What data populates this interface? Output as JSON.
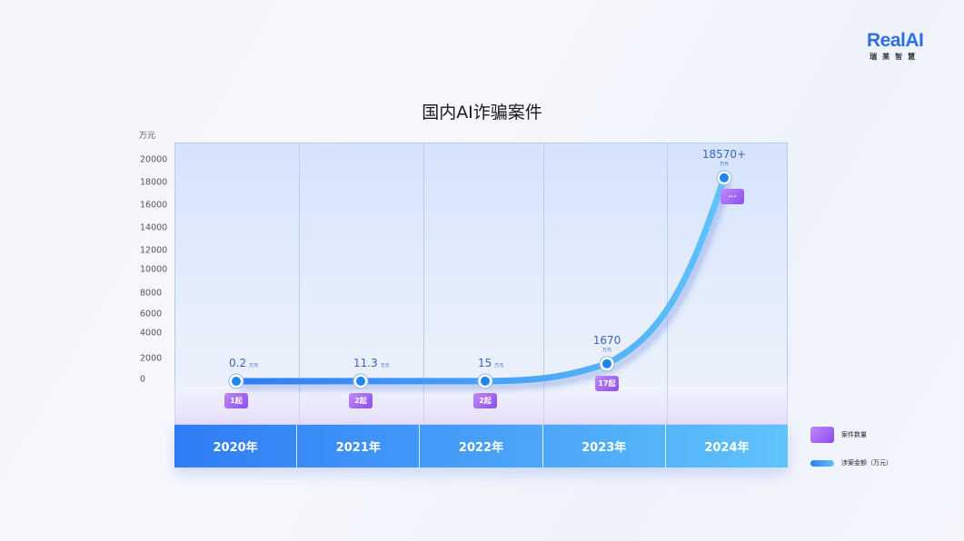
{
  "logo": {
    "en": "RealAI",
    "cn": "瑞莱智慧"
  },
  "chart_data": {
    "type": "line",
    "title": "国内AI诈骗案件",
    "ylabel": "万元",
    "yticks": [
      "20000",
      "18000",
      "16000",
      "14000",
      "12000",
      "10000",
      "8000",
      "6000",
      "4000",
      "2000",
      "0"
    ],
    "ylim": [
      0,
      20000
    ],
    "categories": [
      "2020年",
      "2021年",
      "2022年",
      "2023年",
      "2024年"
    ],
    "series": [
      {
        "name": "涉案金额（万元）",
        "values": [
          0.2,
          11.3,
          15,
          1670,
          18570
        ],
        "labels": [
          "0.2",
          "11.3",
          "15",
          "1670",
          "18570+"
        ],
        "unit": "万元",
        "color": "#2f8cf6"
      },
      {
        "name": "案件数量",
        "values": [
          1,
          2,
          2,
          17,
          null
        ],
        "labels": [
          "1起",
          "2起",
          "2起",
          "17起",
          "···"
        ],
        "color": "#9b5cf3"
      }
    ],
    "grid": false,
    "legend": "bottom-right"
  }
}
